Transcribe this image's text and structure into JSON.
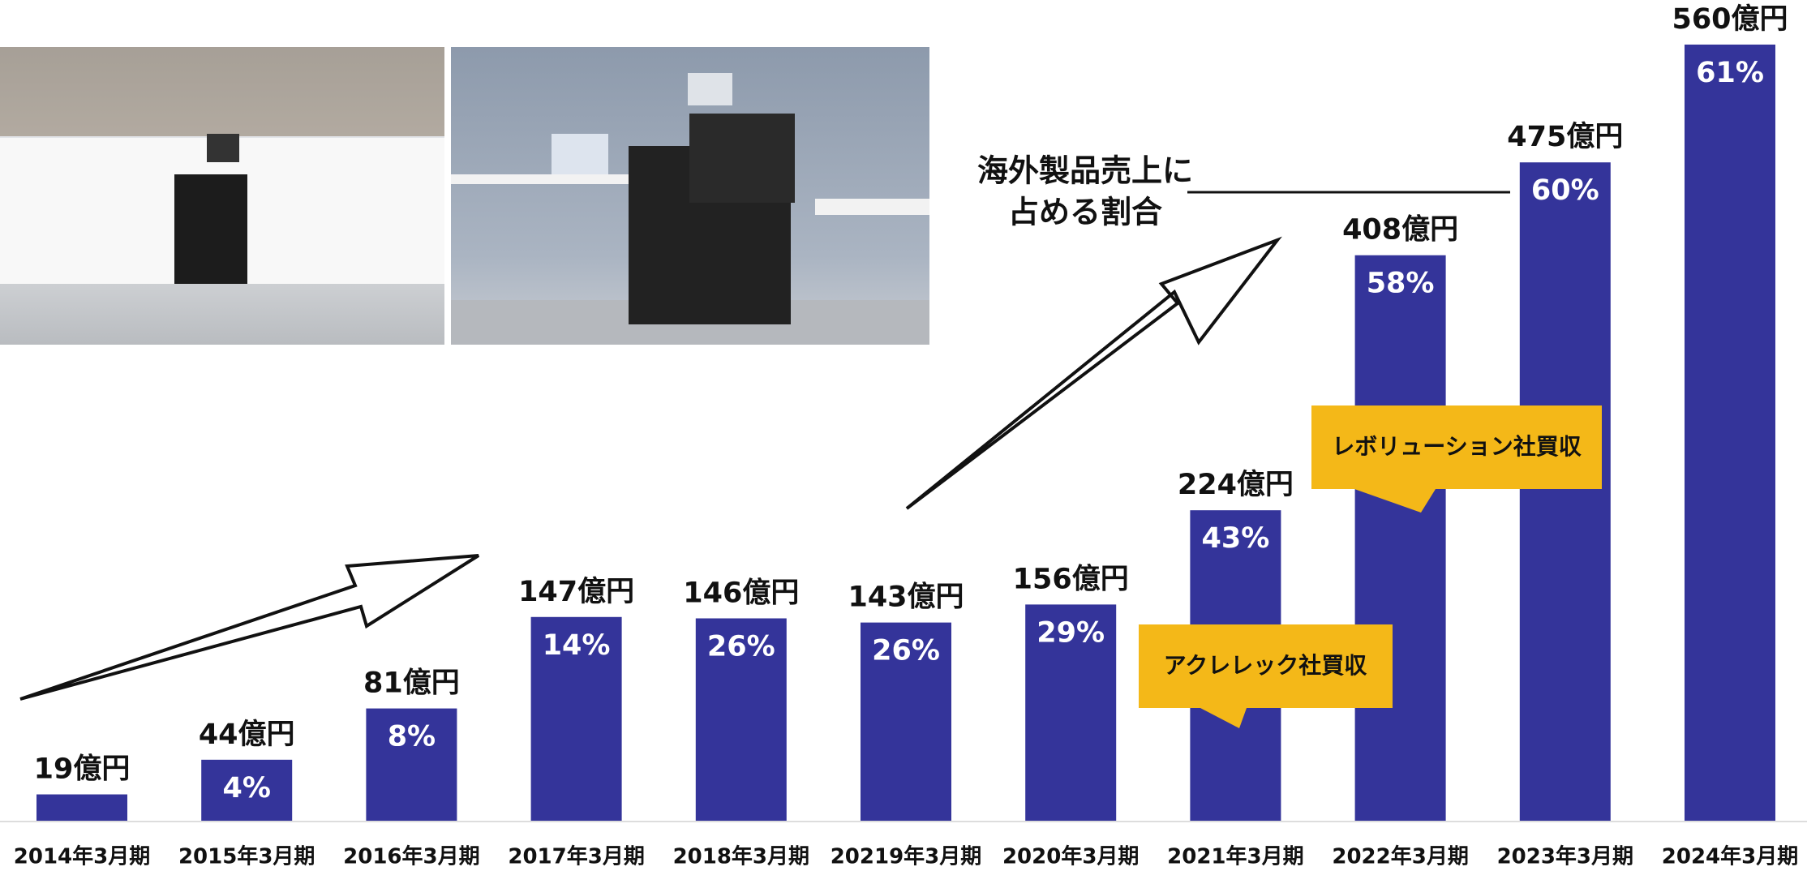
{
  "chart_data": {
    "type": "bar",
    "categories": [
      "2014年3月期",
      "2015年3月期",
      "2016年3月期",
      "2017年3月期",
      "2018年3月期",
      "20219年3月期",
      "2020年3月期",
      "2021年3月期",
      "2022年3月期",
      "2023年3月期",
      "2024年3月期"
    ],
    "series": [
      {
        "color": "#34349a",
        "values": [
          19,
          44,
          81,
          147,
          146,
          143,
          156,
          224,
          408,
          475,
          560
        ],
        "value_labels": [
          "19億円",
          "44億円",
          "81億円",
          "147億円",
          "146億円",
          "143億円",
          "156億円",
          "224億円",
          "408億円",
          "475億円",
          "560億円"
        ]
      },
      {
        "color": "#ffffff",
        "values": [
          null,
          4,
          8,
          14,
          26,
          26,
          29,
          43,
          58,
          60,
          61
        ],
        "value_labels": [
          null,
          "4%",
          "8%",
          "14%",
          "26%",
          "26%",
          "29%",
          "43%",
          "58%",
          "60%",
          "61%"
        ]
      }
    ],
    "annotations": [
      "海外製品売上に",
      "占める割合",
      "アクレレック社買収",
      "レボリューション社買収"
    ],
    "annotation_color": "#f4b818"
  }
}
